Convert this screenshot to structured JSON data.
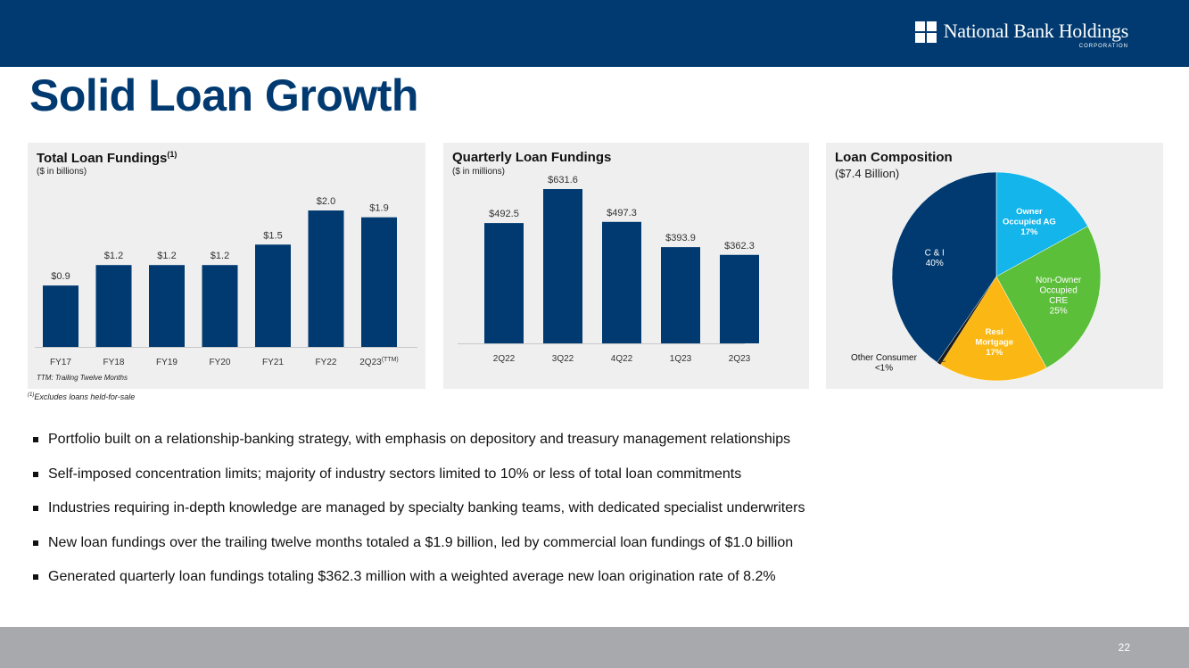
{
  "header": {
    "logo_name": "National Bank Holdings",
    "logo_sub": "CORPORATION"
  },
  "title": "Solid Loan Growth",
  "chart_data": [
    {
      "type": "bar",
      "title": "Total Loan Fundings",
      "title_sup": "(1)",
      "subtitle": "($ in billions)",
      "categories": [
        "FY17",
        "FY18",
        "FY19",
        "FY20",
        "FY21",
        "FY22",
        "2Q23"
      ],
      "category_sup": [
        "",
        "",
        "",
        "",
        "",
        "",
        "(TTM)"
      ],
      "values": [
        0.9,
        1.2,
        1.2,
        1.2,
        1.5,
        2.0,
        1.9
      ],
      "labels": [
        "$0.9",
        "$1.2",
        "$1.2",
        "$1.2",
        "$1.5",
        "$2.0",
        "$1.9"
      ],
      "ylim": [
        0,
        2.0
      ],
      "color": "#003a70",
      "note": "TTM: Trailing Twelve Months"
    },
    {
      "type": "bar",
      "title": "Quarterly Loan Fundings",
      "subtitle": "($ in millions)",
      "categories": [
        "2Q22",
        "3Q22",
        "4Q22",
        "1Q23",
        "2Q23"
      ],
      "values": [
        492.5,
        631.6,
        497.3,
        393.9,
        362.3
      ],
      "labels": [
        "$492.5",
        "$631.6",
        "$497.3",
        "$393.9",
        "$362.3"
      ],
      "ylim": [
        0,
        631.6
      ],
      "color": "#003a70"
    },
    {
      "type": "pie",
      "title": "Loan Composition",
      "subtitle": "($7.4 Billion)",
      "slices": [
        {
          "lines": [
            "Owner",
            "Occupied AG",
            "17%"
          ],
          "value": 17,
          "color": "#13b5ea",
          "text_color": "#ffffff",
          "bold": true
        },
        {
          "lines": [
            "Non-Owner",
            "Occupied",
            "CRE",
            "25%"
          ],
          "value": 25,
          "color": "#5cbf3a",
          "text_color": "#ffffff",
          "bold": false
        },
        {
          "lines": [
            "Resi",
            "Mortgage",
            "17%"
          ],
          "value": 17,
          "color": "#fbb814",
          "text_color": "#ffffff",
          "bold": true
        },
        {
          "lines": [
            "Other Consumer",
            "<1%"
          ],
          "value": 0.6,
          "color": "#1a1a1a",
          "text_color": "#111111",
          "bold": false,
          "external": true
        },
        {
          "lines": [
            "C & I",
            "40%"
          ],
          "value": 40.4,
          "color": "#003a70",
          "text_color": "#ffffff",
          "bold": false
        }
      ]
    }
  ],
  "footnote": {
    "sup": "(1)",
    "text": "Excludes loans held-for-sale"
  },
  "bullets": [
    "Portfolio built on a relationship-banking strategy, with emphasis on depository and treasury management relationships",
    "Self-imposed concentration limits; majority of industry sectors limited to 10% or less of total loan commitments",
    "Industries requiring in-depth knowledge are managed by specialty banking teams, with dedicated specialist underwriters",
    "New loan fundings over the trailing twelve months totaled a $1.9 billion, led by commercial loan fundings of $1.0 billion",
    "Generated quarterly loan fundings totaling $362.3 million with a weighted average new loan origination rate of 8.2%"
  ],
  "page_number": "22"
}
